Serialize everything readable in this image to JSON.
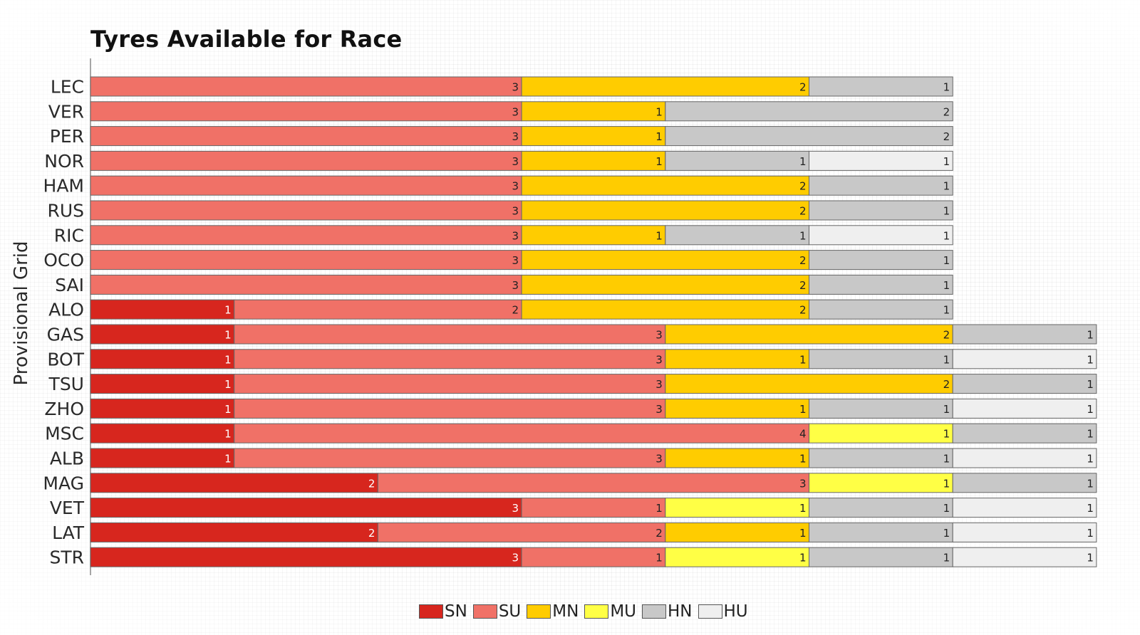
{
  "chart_data": {
    "type": "bar",
    "orientation": "horizontal",
    "stacked": true,
    "title": "Tyres Available for Race",
    "ylabel": "Provisional Grid",
    "xlabel": "",
    "xlim": [
      0,
      7
    ],
    "categories": [
      "LEC",
      "VER",
      "PER",
      "NOR",
      "HAM",
      "RUS",
      "RIC",
      "OCO",
      "SAI",
      "ALO",
      "GAS",
      "BOT",
      "TSU",
      "ZHO",
      "MSC",
      "ALB",
      "MAG",
      "VET",
      "LAT",
      "STR"
    ],
    "series": [
      {
        "name": "SN",
        "color": "#d7261e",
        "values": [
          0,
          0,
          0,
          0,
          0,
          0,
          0,
          0,
          0,
          1,
          1,
          1,
          1,
          1,
          1,
          1,
          2,
          3,
          2,
          3
        ]
      },
      {
        "name": "SU",
        "color": "#f07167",
        "values": [
          3,
          3,
          3,
          3,
          3,
          3,
          3,
          3,
          3,
          2,
          3,
          3,
          3,
          3,
          4,
          3,
          3,
          1,
          2,
          1
        ]
      },
      {
        "name": "MN",
        "color": "#ffcc00",
        "values": [
          2,
          1,
          1,
          1,
          2,
          2,
          1,
          2,
          2,
          2,
          2,
          1,
          2,
          1,
          0,
          1,
          0,
          0,
          1,
          0
        ]
      },
      {
        "name": "MU",
        "color": "#ffff45",
        "values": [
          0,
          0,
          0,
          0,
          0,
          0,
          0,
          0,
          0,
          0,
          0,
          0,
          0,
          0,
          1,
          0,
          1,
          1,
          0,
          1
        ]
      },
      {
        "name": "HN",
        "color": "#c8c8c8",
        "values": [
          1,
          2,
          2,
          1,
          1,
          1,
          1,
          1,
          1,
          1,
          1,
          1,
          1,
          1,
          1,
          1,
          1,
          1,
          1,
          1
        ]
      },
      {
        "name": "HU",
        "color": "#efefef",
        "values": [
          0,
          0,
          0,
          1,
          0,
          0,
          1,
          0,
          0,
          0,
          0,
          1,
          0,
          1,
          0,
          1,
          0,
          1,
          1,
          1
        ]
      }
    ],
    "legend_position": "bottom-center",
    "grid": false
  }
}
